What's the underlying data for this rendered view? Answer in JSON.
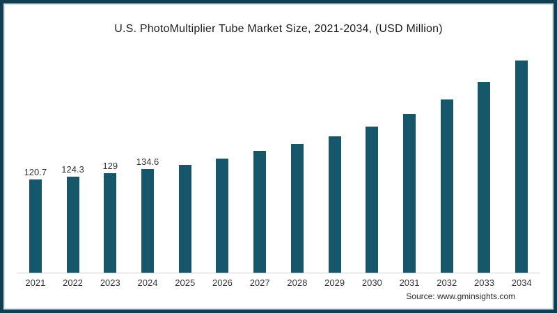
{
  "chart_data": {
    "type": "bar",
    "title": "U.S. PhotoMultiplier Tube Market Size, 2021-2034, (USD Million)",
    "categories": [
      "2021",
      "2022",
      "2023",
      "2024",
      "2025",
      "2026",
      "2027",
      "2028",
      "2029",
      "2030",
      "2031",
      "2032",
      "2033",
      "2034"
    ],
    "values": [
      120.7,
      124.3,
      129,
      134.6,
      140.5,
      148.5,
      158.5,
      167.5,
      177.5,
      190,
      206,
      225,
      247.5,
      275.5
    ],
    "bar_labels": [
      "120.7",
      "124.3",
      "129",
      "134.6",
      "",
      "",
      "",
      "",
      "",
      "",
      "",
      "",
      "",
      ""
    ],
    "xlabel": "",
    "ylabel": "",
    "ylim": [
      0,
      282
    ],
    "grid": false,
    "legend": "none",
    "bar_color": "#15566B",
    "frame_border_color": "#123E54",
    "axis_line_color": "#c8c8c8",
    "source": "Source: www.gminsights.com"
  }
}
